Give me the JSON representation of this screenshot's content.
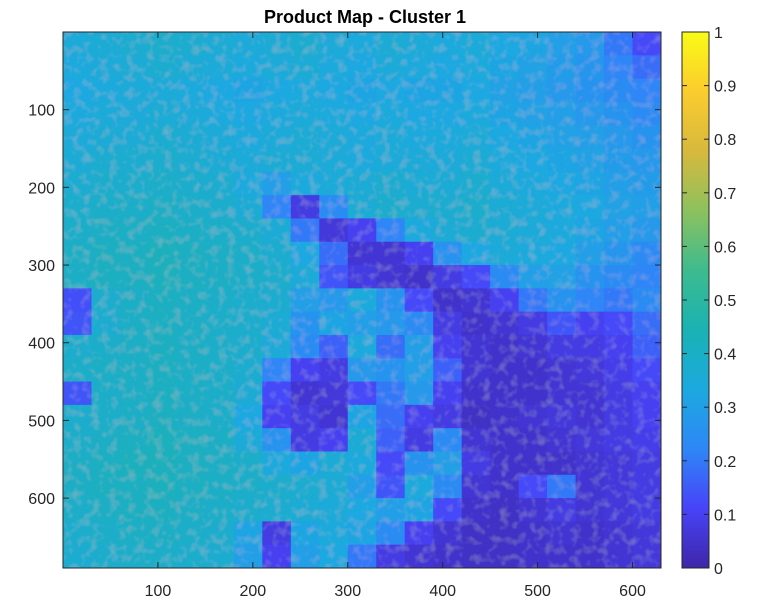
{
  "chart_data": {
    "type": "heatmap",
    "title": "Product Map - Cluster 1",
    "xlabel": "",
    "ylabel": "",
    "x_ticks": [
      100,
      200,
      300,
      400,
      500,
      600
    ],
    "y_ticks": [
      100,
      200,
      300,
      400,
      500,
      600
    ],
    "xlim": [
      0,
      630
    ],
    "ylim": [
      0,
      690
    ],
    "y_direction": "reverse",
    "grid": false,
    "colormap": "parula",
    "colormap_stops": [
      "#3e26a8",
      "#4743f8",
      "#2e87f7",
      "#1ca9df",
      "#1ab2b3",
      "#3dbb8e",
      "#8dc15e",
      "#d7b93d",
      "#fbcc2e",
      "#f9fb15"
    ],
    "clim": [
      0,
      1
    ],
    "colorbar_ticks": [
      0,
      0.1,
      0.2,
      0.3,
      0.4,
      0.5,
      0.6,
      0.7,
      0.8,
      0.9,
      1
    ],
    "colorbar_tick_labels": [
      "0",
      "0.1",
      "0.2",
      "0.3",
      "0.4",
      "0.5",
      "0.6",
      "0.7",
      "0.8",
      "0.9",
      "1"
    ],
    "grid_shape": [
      23,
      21
    ],
    "cell_values": [
      [
        0.35,
        0.36,
        0.37,
        0.38,
        0.37,
        0.36,
        0.35,
        0.36,
        0.37,
        0.35,
        0.34,
        0.36,
        0.35,
        0.34,
        0.35,
        0.33,
        0.32,
        0.3,
        0.28,
        0.2,
        0.12
      ],
      [
        0.34,
        0.35,
        0.36,
        0.37,
        0.36,
        0.35,
        0.34,
        0.35,
        0.36,
        0.34,
        0.33,
        0.35,
        0.34,
        0.33,
        0.34,
        0.32,
        0.31,
        0.29,
        0.27,
        0.22,
        0.18
      ],
      [
        0.33,
        0.34,
        0.35,
        0.35,
        0.34,
        0.33,
        0.32,
        0.33,
        0.34,
        0.33,
        0.32,
        0.33,
        0.32,
        0.32,
        0.33,
        0.31,
        0.3,
        0.28,
        0.26,
        0.24,
        0.22
      ],
      [
        0.34,
        0.35,
        0.35,
        0.36,
        0.35,
        0.34,
        0.33,
        0.34,
        0.35,
        0.34,
        0.33,
        0.34,
        0.33,
        0.33,
        0.34,
        0.32,
        0.31,
        0.3,
        0.28,
        0.26,
        0.24
      ],
      [
        0.35,
        0.36,
        0.36,
        0.37,
        0.36,
        0.35,
        0.34,
        0.35,
        0.36,
        0.35,
        0.34,
        0.35,
        0.34,
        0.34,
        0.35,
        0.33,
        0.32,
        0.31,
        0.3,
        0.28,
        0.26
      ],
      [
        0.36,
        0.37,
        0.37,
        0.38,
        0.37,
        0.36,
        0.35,
        0.36,
        0.36,
        0.35,
        0.34,
        0.35,
        0.35,
        0.35,
        0.36,
        0.34,
        0.33,
        0.32,
        0.31,
        0.29,
        0.28
      ],
      [
        0.37,
        0.38,
        0.38,
        0.39,
        0.38,
        0.37,
        0.34,
        0.3,
        0.34,
        0.35,
        0.36,
        0.37,
        0.36,
        0.36,
        0.37,
        0.35,
        0.34,
        0.33,
        0.32,
        0.3,
        0.29
      ],
      [
        0.38,
        0.39,
        0.39,
        0.4,
        0.39,
        0.38,
        0.36,
        0.22,
        0.08,
        0.24,
        0.36,
        0.38,
        0.37,
        0.37,
        0.38,
        0.36,
        0.35,
        0.34,
        0.33,
        0.31,
        0.3
      ],
      [
        0.39,
        0.4,
        0.4,
        0.41,
        0.4,
        0.39,
        0.38,
        0.36,
        0.2,
        0.07,
        0.1,
        0.22,
        0.34,
        0.36,
        0.37,
        0.36,
        0.35,
        0.34,
        0.32,
        0.3,
        0.28
      ],
      [
        0.4,
        0.41,
        0.41,
        0.42,
        0.41,
        0.4,
        0.39,
        0.37,
        0.33,
        0.18,
        0.06,
        0.06,
        0.1,
        0.26,
        0.33,
        0.35,
        0.34,
        0.33,
        0.3,
        0.27,
        0.24
      ],
      [
        0.4,
        0.41,
        0.41,
        0.42,
        0.41,
        0.4,
        0.39,
        0.38,
        0.35,
        0.14,
        0.08,
        0.06,
        0.05,
        0.08,
        0.12,
        0.24,
        0.3,
        0.31,
        0.26,
        0.24,
        0.22
      ],
      [
        0.13,
        0.38,
        0.4,
        0.41,
        0.4,
        0.39,
        0.38,
        0.37,
        0.3,
        0.28,
        0.34,
        0.26,
        0.12,
        0.05,
        0.06,
        0.1,
        0.2,
        0.26,
        0.22,
        0.2,
        0.24
      ],
      [
        0.14,
        0.37,
        0.4,
        0.41,
        0.4,
        0.39,
        0.38,
        0.36,
        0.26,
        0.32,
        0.3,
        0.28,
        0.24,
        0.08,
        0.05,
        0.06,
        0.08,
        0.14,
        0.1,
        0.12,
        0.18
      ],
      [
        0.38,
        0.39,
        0.4,
        0.41,
        0.4,
        0.39,
        0.38,
        0.35,
        0.24,
        0.16,
        0.34,
        0.18,
        0.3,
        0.1,
        0.06,
        0.05,
        0.06,
        0.08,
        0.08,
        0.1,
        0.16
      ],
      [
        0.39,
        0.4,
        0.4,
        0.41,
        0.4,
        0.39,
        0.37,
        0.22,
        0.1,
        0.08,
        0.28,
        0.26,
        0.3,
        0.16,
        0.06,
        0.05,
        0.05,
        0.06,
        0.07,
        0.09,
        0.12
      ],
      [
        0.14,
        0.39,
        0.4,
        0.41,
        0.4,
        0.39,
        0.36,
        0.12,
        0.06,
        0.07,
        0.12,
        0.2,
        0.28,
        0.1,
        0.05,
        0.05,
        0.05,
        0.06,
        0.06,
        0.08,
        0.1
      ],
      [
        0.38,
        0.39,
        0.4,
        0.41,
        0.4,
        0.39,
        0.33,
        0.1,
        0.08,
        0.06,
        0.32,
        0.18,
        0.1,
        0.08,
        0.04,
        0.05,
        0.06,
        0.07,
        0.06,
        0.08,
        0.1
      ],
      [
        0.39,
        0.4,
        0.41,
        0.42,
        0.41,
        0.4,
        0.35,
        0.26,
        0.08,
        0.1,
        0.36,
        0.16,
        0.08,
        0.24,
        0.06,
        0.05,
        0.05,
        0.06,
        0.07,
        0.08,
        0.09
      ],
      [
        0.4,
        0.41,
        0.42,
        0.42,
        0.41,
        0.4,
        0.39,
        0.34,
        0.32,
        0.36,
        0.34,
        0.12,
        0.26,
        0.3,
        0.08,
        0.05,
        0.05,
        0.05,
        0.06,
        0.07,
        0.08
      ],
      [
        0.4,
        0.41,
        0.41,
        0.42,
        0.41,
        0.4,
        0.39,
        0.38,
        0.37,
        0.36,
        0.3,
        0.14,
        0.34,
        0.24,
        0.06,
        0.05,
        0.12,
        0.2,
        0.06,
        0.07,
        0.08
      ],
      [
        0.39,
        0.4,
        0.41,
        0.41,
        0.4,
        0.39,
        0.38,
        0.37,
        0.36,
        0.35,
        0.33,
        0.3,
        0.32,
        0.12,
        0.05,
        0.04,
        0.06,
        0.08,
        0.06,
        0.07,
        0.08
      ],
      [
        0.38,
        0.39,
        0.4,
        0.4,
        0.39,
        0.38,
        0.32,
        0.08,
        0.32,
        0.34,
        0.32,
        0.24,
        0.1,
        0.06,
        0.04,
        0.04,
        0.05,
        0.06,
        0.05,
        0.06,
        0.07
      ],
      [
        0.37,
        0.38,
        0.39,
        0.39,
        0.38,
        0.37,
        0.3,
        0.1,
        0.3,
        0.33,
        0.2,
        0.08,
        0.06,
        0.05,
        0.04,
        0.04,
        0.05,
        0.05,
        0.05,
        0.06,
        0.07
      ]
    ]
  }
}
